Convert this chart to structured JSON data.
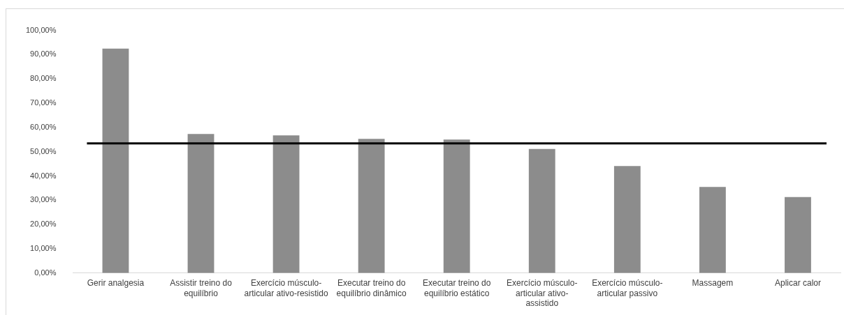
{
  "chart_data": {
    "type": "bar",
    "categories": [
      "Gerir analgesia",
      "Assistir treino do equilíbrio",
      "Exercício músculo-articular ativo-resistido",
      "Executar treino do equilíbrio dinâmico",
      "Executar treino do equilíbrio estático",
      "Exercício músculo-articular ativo-assistido",
      "Exercício músculo-articular passivo",
      "Massagem",
      "Aplicar calor"
    ],
    "values": [
      92.5,
      57.3,
      56.7,
      55.3,
      55.0,
      51.1,
      44.1,
      35.5,
      31.3
    ],
    "color": "#8c8c8c",
    "ylim": [
      0,
      100
    ],
    "yticks": [
      {
        "value": 0,
        "label": "0,00%"
      },
      {
        "value": 10,
        "label": "10,00%"
      },
      {
        "value": 20,
        "label": "20,00%"
      },
      {
        "value": 30,
        "label": "30,00%"
      },
      {
        "value": 40,
        "label": "40,00%"
      },
      {
        "value": 50,
        "label": "50,00%"
      },
      {
        "value": 60,
        "label": "60,00%"
      },
      {
        "value": 70,
        "label": "70,00%"
      },
      {
        "value": 80,
        "label": "80,00%"
      },
      {
        "value": 90,
        "label": "90,00%"
      },
      {
        "value": 100,
        "label": "100,00%"
      }
    ],
    "ref_lines": [
      {
        "axis": "y",
        "value": 53.4,
        "color": "#000000"
      }
    ],
    "grid": false,
    "legend": false
  }
}
